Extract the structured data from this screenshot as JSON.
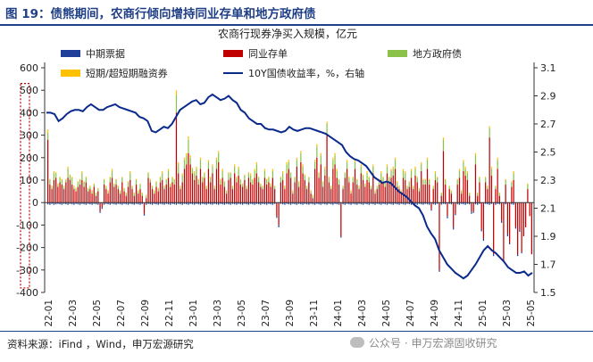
{
  "figure": {
    "title": "图 19：债熊期间，农商行倾向增持同业存单和地方政府债",
    "source": "资料来源：iFind ，Wind，申万宏源研究",
    "watermark": "公众号 · 申万宏源固收研究"
  },
  "chart_data": {
    "type": "bar",
    "title": "农商行现券净买入规模，亿元",
    "ylim_left": [
      -400,
      600
    ],
    "yticks_left": [
      600,
      500,
      400,
      300,
      200,
      100,
      0,
      -100,
      -200,
      -300,
      -400
    ],
    "ylim_right": [
      1.5,
      3.1
    ],
    "yticks_right": [
      3.1,
      2.9,
      2.7,
      2.5,
      2.3,
      2.1,
      1.9,
      1.7,
      1.5
    ],
    "xticks": [
      "22-01",
      "22-03",
      "22-05",
      "22-07",
      "22-09",
      "22-11",
      "23-01",
      "23-03",
      "23-05",
      "23-07",
      "23-09",
      "23-11",
      "24-01",
      "24-03",
      "24-05",
      "24-07",
      "24-09",
      "24-11",
      "25-01",
      "25-03",
      "25-05"
    ],
    "legend": {
      "position": "top",
      "entries": [
        "中期票据",
        "同业存单",
        "地方政府债",
        "短期/超短期融资券",
        "10Y国债收益率，%，右轴"
      ]
    },
    "colors": {
      "mtn": "#1f3f99",
      "ncd": "#c00000",
      "lgb": "#8bc34a",
      "scp": "#ffc000",
      "yield": "#0a2a8c",
      "highlight": "#c00000"
    },
    "series_bars": [
      {
        "name": "同业存单",
        "values": [
          280,
          80,
          60,
          100,
          110,
          70,
          90,
          80,
          60,
          90,
          110,
          100,
          80,
          60,
          50,
          70,
          80,
          100,
          70,
          90,
          50,
          60,
          40,
          70,
          30,
          50,
          -40,
          -20,
          80,
          60,
          40,
          90,
          110,
          70,
          80,
          60,
          40,
          90,
          50,
          30,
          70,
          100,
          60,
          30,
          80,
          40,
          60,
          30,
          -50,
          20,
          110,
          90,
          60,
          40,
          70,
          50,
          90,
          100,
          60,
          80,
          110,
          70,
          90,
          80,
          400,
          130,
          60,
          90,
          150,
          170,
          220,
          170,
          130,
          100,
          120,
          80,
          150,
          90,
          110,
          60,
          150,
          90,
          130,
          60,
          150,
          180,
          80,
          110,
          70,
          40,
          100,
          110,
          60,
          130,
          90,
          120,
          80,
          70,
          100,
          60,
          110,
          90,
          80,
          110,
          130,
          90,
          70,
          60,
          110,
          80,
          90,
          70,
          110,
          60,
          -60,
          -100,
          90,
          100,
          60,
          130,
          150,
          110,
          40,
          90,
          160,
          70,
          180,
          130,
          100,
          60,
          90,
          40,
          20,
          150,
          200,
          110,
          170,
          70,
          120,
          300,
          90,
          60,
          150,
          170,
          110,
          80,
          -150,
          60,
          110,
          150,
          90,
          40,
          90,
          150,
          80,
          60,
          130,
          100,
          70,
          100,
          90,
          60,
          130,
          40,
          60,
          80,
          100,
          90,
          70,
          130,
          90,
          110,
          120,
          150,
          70,
          60,
          40,
          110,
          100,
          60,
          70,
          110,
          60,
          120,
          90,
          50,
          140,
          80,
          80,
          150,
          80,
          -30,
          60,
          100,
          90,
          -300,
          30,
          230,
          80,
          -60,
          60,
          40,
          -110,
          -50,
          80,
          110,
          40,
          140,
          120,
          100,
          30,
          -40,
          -40,
          170,
          30,
          90,
          -120,
          -160,
          90,
          60,
          290,
          120,
          -230,
          60,
          150,
          30,
          -80,
          -260,
          80,
          -140,
          -180,
          70,
          100,
          -110,
          -230,
          -120,
          -220,
          -150,
          -110,
          60,
          -60,
          -230
        ]
      },
      {
        "name": "地方政府债",
        "values": [
          30,
          20,
          10,
          30,
          20,
          10,
          20,
          20,
          10,
          10,
          40,
          20,
          30,
          10,
          10,
          20,
          20,
          30,
          20,
          20,
          10,
          10,
          10,
          10,
          10,
          10,
          0,
          0,
          20,
          10,
          10,
          20,
          30,
          10,
          20,
          10,
          10,
          20,
          10,
          10,
          20,
          30,
          10,
          10,
          20,
          10,
          20,
          10,
          0,
          10,
          20,
          10,
          10,
          10,
          20,
          10,
          20,
          30,
          10,
          20,
          30,
          10,
          20,
          20,
          80,
          40,
          10,
          30,
          40,
          40,
          60,
          30,
          20,
          30,
          30,
          20,
          40,
          20,
          20,
          10,
          30,
          20,
          30,
          10,
          40,
          40,
          20,
          30,
          20,
          10,
          30,
          20,
          10,
          30,
          20,
          30,
          20,
          10,
          20,
          10,
          20,
          30,
          20,
          30,
          40,
          20,
          10,
          10,
          30,
          20,
          20,
          10,
          30,
          10,
          0,
          0,
          20,
          30,
          10,
          40,
          30,
          20,
          10,
          20,
          30,
          20,
          40,
          30,
          20,
          10,
          20,
          10,
          10,
          30,
          50,
          20,
          40,
          20,
          30,
          50,
          20,
          10,
          40,
          40,
          30,
          20,
          0,
          10,
          20,
          30,
          20,
          10,
          20,
          30,
          20,
          10,
          30,
          20,
          10,
          30,
          20,
          10,
          30,
          10,
          10,
          20,
          30,
          20,
          20,
          30,
          20,
          30,
          30,
          40,
          20,
          10,
          10,
          30,
          30,
          10,
          20,
          30,
          10,
          30,
          20,
          10,
          30,
          20,
          20,
          40,
          20,
          0,
          10,
          30,
          20,
          0,
          10,
          50,
          20,
          0,
          10,
          10,
          0,
          0,
          20,
          30,
          10,
          40,
          30,
          30,
          10,
          0,
          0,
          40,
          10,
          20,
          0,
          0,
          20,
          10,
          40,
          30,
          0,
          10,
          40,
          10,
          0,
          0,
          20,
          0,
          0,
          20,
          30,
          0,
          0,
          0,
          0,
          0,
          0,
          20,
          0,
          0
        ]
      },
      {
        "name": "短期/超短期融资券",
        "values": [
          15,
          5,
          5,
          10,
          5,
          5,
          5,
          5,
          5,
          5,
          10,
          5,
          5,
          5,
          5,
          5,
          5,
          10,
          5,
          5,
          5,
          5,
          5,
          5,
          5,
          5,
          0,
          0,
          5,
          5,
          5,
          5,
          10,
          5,
          5,
          5,
          5,
          5,
          5,
          5,
          5,
          10,
          5,
          5,
          5,
          5,
          5,
          5,
          0,
          5,
          5,
          5,
          5,
          5,
          5,
          5,
          5,
          10,
          5,
          5,
          10,
          5,
          5,
          5,
          20,
          10,
          5,
          10,
          10,
          10,
          15,
          10,
          5,
          10,
          10,
          5,
          10,
          5,
          5,
          5,
          10,
          5,
          10,
          5,
          10,
          10,
          5,
          10,
          5,
          5,
          5,
          5,
          5,
          10,
          5,
          10,
          5,
          5,
          5,
          5,
          5,
          10,
          5,
          10,
          10,
          5,
          5,
          5,
          10,
          5,
          5,
          5,
          10,
          5,
          0,
          0,
          5,
          10,
          5,
          10,
          10,
          5,
          5,
          5,
          10,
          5,
          10,
          10,
          5,
          5,
          5,
          5,
          5,
          10,
          10,
          5,
          10,
          5,
          10,
          10,
          5,
          5,
          10,
          10,
          10,
          5,
          0,
          5,
          5,
          10,
          5,
          5,
          5,
          10,
          5,
          5,
          10,
          5,
          5,
          10,
          5,
          5,
          10,
          5,
          5,
          5,
          10,
          5,
          5,
          10,
          5,
          10,
          10,
          10,
          5,
          5,
          5,
          10,
          10,
          5,
          5,
          10,
          5,
          10,
          5,
          5,
          10,
          5,
          5,
          10,
          5,
          0,
          5,
          10,
          5,
          0,
          5,
          10,
          5,
          0,
          5,
          5,
          0,
          0,
          5,
          10,
          5,
          10,
          10,
          10,
          5,
          0,
          0,
          10,
          5,
          5,
          0,
          0,
          5,
          5,
          10,
          10,
          0,
          5,
          10,
          5,
          0,
          0,
          5,
          0,
          0,
          5,
          10,
          0,
          0,
          0,
          0,
          0,
          0,
          5,
          0,
          0
        ]
      },
      {
        "name": "中期票据",
        "values": [
          -8,
          -10,
          -6,
          -10,
          -8,
          -6,
          -8,
          -10,
          -6,
          -8,
          -10,
          -6,
          -8,
          -10,
          -6,
          -8,
          -10,
          -6,
          -8,
          -10,
          -6,
          -8,
          -10,
          -6,
          -8,
          -10,
          -6,
          -8,
          -10,
          -6,
          -8,
          -10,
          -6,
          -8,
          -10,
          -6,
          -8,
          -10,
          -6,
          -8,
          -10,
          -6,
          -8,
          -10,
          -6,
          -8,
          -10,
          -6,
          -8,
          -10,
          -6,
          -8,
          -10,
          -6,
          -8,
          -10,
          -6,
          -8,
          -10,
          -6,
          -8,
          -10,
          -6,
          -8,
          -10,
          -6,
          -8,
          -10,
          -6,
          -8,
          -10,
          -6,
          -8,
          -10,
          -6,
          -8,
          -10,
          -6,
          -8,
          -10,
          -6,
          -8,
          -10,
          -6,
          -8,
          -10,
          -6,
          -8,
          -10,
          -6,
          -8,
          -10,
          -6,
          -8,
          -10,
          -6,
          -8,
          -10,
          -6,
          -8,
          -10,
          -6,
          -8,
          -10,
          -6,
          -8,
          -10,
          -6,
          -8,
          -10,
          -6,
          -8,
          -10,
          -6,
          -8,
          -10,
          -6,
          -8,
          -10,
          -6,
          -8,
          -10,
          -6,
          -8,
          -10,
          -6,
          -8,
          -10,
          -6,
          -8,
          -10,
          -6,
          -8,
          -10,
          -6,
          -8,
          -10,
          -6,
          -8,
          -10,
          -6,
          -8,
          -10,
          -6,
          -8,
          -10,
          -6,
          -8,
          -10,
          -6,
          -8,
          -10,
          -6,
          -8,
          -10,
          -6,
          -8,
          -10,
          -6,
          -8,
          -10,
          -6,
          -8,
          -10,
          -6,
          -8,
          -10,
          -6,
          -8,
          -10,
          -6,
          -8,
          -10,
          -6,
          -8,
          -10,
          -6,
          -8,
          -10,
          -6,
          -8,
          -10,
          -6,
          -8,
          -10,
          -6,
          -8,
          -10,
          -6,
          -8,
          -10,
          -6,
          -8,
          -10,
          -6,
          -8,
          -10,
          -6,
          -8,
          -10,
          -6,
          -8,
          -10,
          -6,
          -8,
          -10,
          -6,
          -8,
          -10,
          -6,
          -8,
          -10,
          -6,
          -8,
          -10,
          -6,
          -8,
          -10,
          -6,
          -8,
          -10,
          -6,
          -8,
          -10,
          -6,
          -8,
          -10,
          -6,
          -8,
          -10,
          -6,
          -8,
          -10,
          -6,
          -8,
          -10,
          -6
        ]
      }
    ],
    "series_line": {
      "name": "10Y国债收益率，%，右轴",
      "x_range": [
        "22-01",
        "25-05"
      ],
      "values": [
        2.78,
        2.78,
        2.77,
        2.72,
        2.74,
        2.77,
        2.79,
        2.8,
        2.8,
        2.79,
        2.82,
        2.84,
        2.82,
        2.8,
        2.8,
        2.82,
        2.83,
        2.84,
        2.82,
        2.81,
        2.8,
        2.79,
        2.78,
        2.75,
        2.74,
        2.72,
        2.65,
        2.64,
        2.66,
        2.68,
        2.67,
        2.7,
        2.75,
        2.8,
        2.82,
        2.84,
        2.86,
        2.87,
        2.84,
        2.85,
        2.89,
        2.91,
        2.89,
        2.87,
        2.88,
        2.9,
        2.87,
        2.85,
        2.8,
        2.78,
        2.74,
        2.72,
        2.7,
        2.7,
        2.67,
        2.66,
        2.66,
        2.65,
        2.64,
        2.65,
        2.68,
        2.66,
        2.65,
        2.66,
        2.67,
        2.67,
        2.66,
        2.65,
        2.64,
        2.63,
        2.61,
        2.59,
        2.57,
        2.55,
        2.5,
        2.47,
        2.45,
        2.44,
        2.42,
        2.4,
        2.36,
        2.32,
        2.3,
        2.28,
        2.29,
        2.28,
        2.25,
        2.22,
        2.2,
        2.18,
        2.15,
        2.12,
        2.1,
        2.05,
        1.97,
        1.92,
        1.88,
        1.8,
        1.75,
        1.7,
        1.67,
        1.64,
        1.62,
        1.6,
        1.62,
        1.66,
        1.7,
        1.75,
        1.8,
        1.83,
        1.8,
        1.78,
        1.75,
        1.72,
        1.68,
        1.66,
        1.64,
        1.64,
        1.65,
        1.62,
        1.64
      ]
    },
    "highlights": [
      {
        "from": "22-10",
        "to": "23-02",
        "y_top": 530,
        "y_bottom": -380
      },
      {
        "from": "25-01",
        "to": "25-02",
        "y_top": 510,
        "y_bottom": -380
      }
    ]
  }
}
